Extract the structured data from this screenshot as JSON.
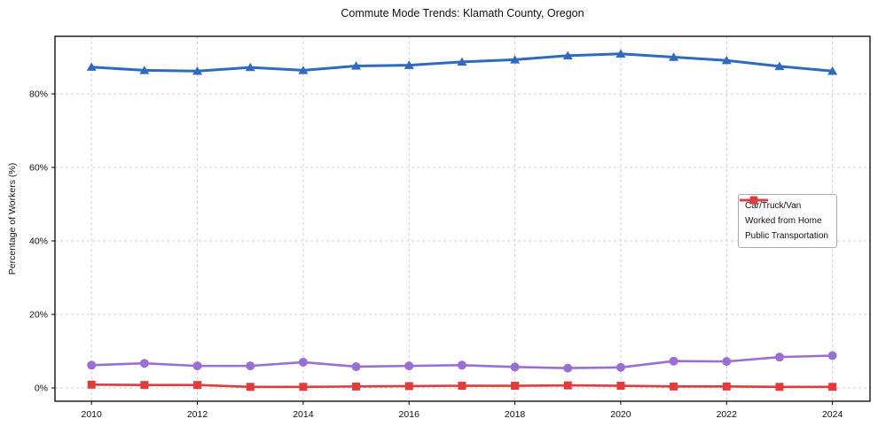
{
  "chart_data": {
    "type": "line",
    "title": "Commute Mode Trends: Klamath County, Oregon",
    "xlabel": "",
    "ylabel": "Percentage of Workers (%)",
    "x": [
      2010,
      2011,
      2012,
      2013,
      2014,
      2015,
      2016,
      2017,
      2018,
      2019,
      2020,
      2021,
      2022,
      2023,
      2024
    ],
    "series": [
      {
        "name": "Car/Truck/Van",
        "color": "#2f6abf",
        "marker": "triangle",
        "line_width": 3,
        "values": [
          87.3,
          86.4,
          86.2,
          87.2,
          86.4,
          87.6,
          87.8,
          88.7,
          89.3,
          90.4,
          90.9,
          90.0,
          89.1,
          87.5,
          86.2
        ]
      },
      {
        "name": "Worked from Home",
        "color": "#9a6fd3",
        "marker": "circle",
        "line_width": 2.6,
        "values": [
          6.2,
          6.7,
          6.0,
          6.0,
          7.0,
          5.8,
          6.0,
          6.2,
          5.7,
          5.4,
          5.6,
          7.3,
          7.2,
          8.4,
          8.8
        ]
      },
      {
        "name": "Public Transportation",
        "color": "#e23b3c",
        "marker": "square",
        "line_width": 2.6,
        "values": [
          0.9,
          0.8,
          0.8,
          0.3,
          0.3,
          0.4,
          0.5,
          0.6,
          0.6,
          0.7,
          0.6,
          0.4,
          0.4,
          0.3,
          0.3
        ]
      }
    ],
    "xticks": [
      2010,
      2012,
      2014,
      2016,
      2018,
      2020,
      2022,
      2024
    ],
    "yticks": [
      0,
      20,
      40,
      60,
      80
    ],
    "ytick_suffix": "%",
    "xlim": [
      2009.31,
      2024.71
    ],
    "ylim": [
      -3.61,
      95.66
    ],
    "grid": true,
    "grid_color": "#d0d0d0",
    "frame_color": "#000000",
    "legend_position": "center-right"
  }
}
